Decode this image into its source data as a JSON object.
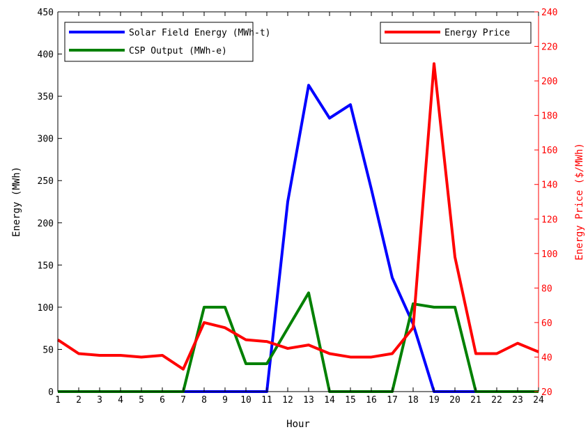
{
  "chart_data": {
    "type": "line",
    "xlabel": "Hour",
    "ylabel_left": "Energy (MWh)",
    "ylabel_right": "Energy Price ($/MWh)",
    "x": [
      1,
      2,
      3,
      4,
      5,
      6,
      7,
      8,
      9,
      10,
      11,
      12,
      13,
      14,
      15,
      16,
      17,
      18,
      19,
      20,
      21,
      22,
      23,
      24
    ],
    "xlim": [
      1,
      24
    ],
    "ylim_left": [
      0,
      450
    ],
    "ylim_right": [
      20,
      240
    ],
    "yticks_left": [
      0,
      50,
      100,
      150,
      200,
      250,
      300,
      350,
      400,
      450
    ],
    "yticks_right": [
      20,
      40,
      60,
      80,
      100,
      120,
      140,
      160,
      180,
      200,
      220,
      240
    ],
    "grid": false,
    "colors": {
      "left_axis": "#000000",
      "right_axis": "#ff0000"
    },
    "series": [
      {
        "name": "Solar Field Energy (MWh-t)",
        "axis": "left",
        "color": "#0000ff",
        "values": [
          0,
          0,
          0,
          0,
          0,
          0,
          0,
          0,
          0,
          0,
          0,
          225,
          363,
          324,
          340,
          240,
          135,
          80,
          0,
          0,
          0,
          0,
          0,
          0
        ]
      },
      {
        "name": "CSP Output (MWh-e)",
        "axis": "left",
        "color": "#008000",
        "values": [
          0,
          0,
          0,
          0,
          0,
          0,
          0,
          100,
          100,
          33,
          33,
          75,
          117,
          0,
          0,
          0,
          0,
          104,
          100,
          100,
          0,
          0,
          0,
          0
        ]
      },
      {
        "name": "Energy Price",
        "axis": "right",
        "color": "#ff0000",
        "values": [
          50,
          42,
          41,
          41,
          40,
          41,
          33,
          60,
          57,
          50,
          49,
          45,
          47,
          42,
          40,
          40,
          42,
          57,
          210,
          98,
          42,
          42,
          48,
          43
        ]
      }
    ],
    "legends": [
      {
        "placement": "top-left",
        "entries": [
          "Solar Field Energy (MWh-t)",
          "CSP Output (MWh-e)"
        ]
      },
      {
        "placement": "top-right",
        "entries": [
          "Energy Price"
        ]
      }
    ]
  }
}
